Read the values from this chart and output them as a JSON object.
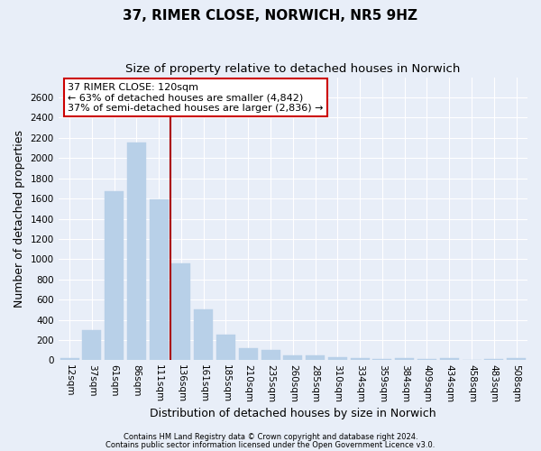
{
  "title_line1": "37, RIMER CLOSE, NORWICH, NR5 9HZ",
  "title_line2": "Size of property relative to detached houses in Norwich",
  "xlabel": "Distribution of detached houses by size in Norwich",
  "ylabel": "Number of detached properties",
  "footnote1": "Contains HM Land Registry data © Crown copyright and database right 2024.",
  "footnote2": "Contains public sector information licensed under the Open Government Licence v3.0.",
  "bar_labels": [
    "12sqm",
    "37sqm",
    "61sqm",
    "86sqm",
    "111sqm",
    "136sqm",
    "161sqm",
    "185sqm",
    "210sqm",
    "235sqm",
    "260sqm",
    "285sqm",
    "310sqm",
    "334sqm",
    "359sqm",
    "384sqm",
    "409sqm",
    "434sqm",
    "458sqm",
    "483sqm",
    "508sqm"
  ],
  "bar_values": [
    25,
    300,
    1670,
    2150,
    1590,
    960,
    500,
    250,
    120,
    100,
    50,
    45,
    35,
    20,
    15,
    25,
    15,
    20,
    5,
    15,
    25
  ],
  "bar_color": "#b8d0e8",
  "bar_edgecolor": "#b8d0e8",
  "vline_x_index": 4,
  "vline_color": "#aa0000",
  "annotation_title": "37 RIMER CLOSE: 120sqm",
  "annotation_line1": "← 63% of detached houses are smaller (4,842)",
  "annotation_line2": "37% of semi-detached houses are larger (2,836) →",
  "annotation_box_facecolor": "#ffffff",
  "annotation_box_edgecolor": "#cc0000",
  "ylim": [
    0,
    2800
  ],
  "yticks": [
    0,
    200,
    400,
    600,
    800,
    1000,
    1200,
    1400,
    1600,
    1800,
    2000,
    2200,
    2400,
    2600
  ],
  "background_color": "#e8eef8",
  "axes_background": "#e8eef8",
  "grid_color": "#ffffff",
  "title_fontsize": 11,
  "subtitle_fontsize": 9.5,
  "axis_label_fontsize": 9,
  "tick_fontsize": 7.5,
  "annotation_fontsize": 8,
  "footnote_fontsize": 6
}
